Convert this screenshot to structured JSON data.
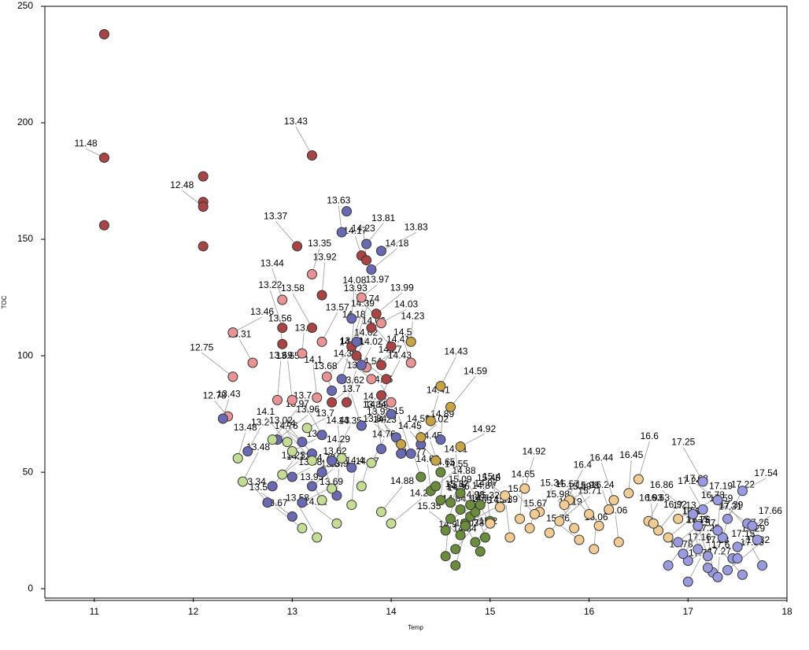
{
  "chart_data": {
    "type": "scatter",
    "x_label": "Temp",
    "y_label": "TOC",
    "xlim": [
      10.5,
      18
    ],
    "ylim": [
      -4,
      250
    ],
    "xticks": [
      11,
      12,
      13,
      14,
      15,
      16,
      17,
      18
    ],
    "yticks": [
      0,
      50,
      100,
      150,
      200,
      250
    ],
    "series": [
      {
        "color": "#a84444",
        "x": [
          11.1,
          11.1,
          11.1,
          12.1,
          12.1,
          12.1,
          12.1,
          13.05,
          13.2,
          13.7,
          13.75,
          13.3,
          13.6,
          13.65,
          13.9,
          13.85,
          13.8,
          13.95,
          14.0,
          13.2,
          12.9,
          12.9,
          13.6,
          13.55,
          13.9,
          13.7,
          13.4
        ],
        "values": [
          238,
          185,
          156,
          177,
          166,
          164,
          147,
          147,
          112,
          143,
          141,
          126,
          104,
          100,
          96,
          118,
          112,
          90,
          104,
          186,
          112,
          105,
          104,
          80,
          83,
          70,
          80
        ],
        "labels": [
          null,
          "11.48",
          null,
          null,
          null,
          "12.48",
          null,
          "13.37",
          "13.58",
          "14.17",
          "14.23",
          "13.92",
          "14.39",
          "14.02",
          "14.41",
          "13.99",
          "14.03",
          "14.54",
          "14.06",
          "13.43",
          "13.22",
          "13.56",
          "14.18",
          "13.7",
          "14.43",
          "13.84",
          "13.62"
        ]
      },
      {
        "color": "#e89494",
        "x": [
          12.4,
          12.4,
          12.35,
          12.6,
          12.9,
          13.0,
          13.1,
          13.2,
          13.3,
          13.35,
          13.7,
          13.75,
          13.8,
          13.9,
          14.0,
          14.2,
          13.25,
          12.85
        ],
        "values": [
          110,
          91,
          74,
          97,
          124,
          81,
          101,
          135,
          106,
          91,
          125,
          95,
          90,
          114,
          80,
          97,
          82,
          81
        ],
        "labels": [
          "13.46",
          "12.75",
          "12.78",
          "13.31",
          "13.44",
          "13.65",
          "13.8",
          "13.35",
          "13.57",
          "13.81",
          "13.97",
          "14.27",
          "14.36",
          "13.93",
          "14.45",
          "14.5",
          "14.1",
          "13.69"
        ]
      },
      {
        "color": "#6a6ab4",
        "x": [
          12.3,
          12.55,
          12.8,
          12.85,
          13.0,
          13.1,
          13.2,
          13.3,
          13.4,
          13.5,
          13.55,
          13.6,
          13.65,
          13.7,
          13.75,
          13.8,
          13.9,
          14.0,
          14.05,
          14.1,
          14.2,
          14.3,
          13.45,
          13.5,
          13.4,
          13.3,
          13.2,
          13.1,
          13.0,
          12.75,
          13.6,
          13.7,
          13.9,
          14.5
        ],
        "values": [
          73,
          59,
          44,
          64,
          48,
          63,
          58,
          66,
          85,
          153,
          162,
          116,
          106,
          96,
          148,
          137,
          145,
          75,
          65,
          58,
          58,
          62,
          40,
          90,
          55,
          50,
          44,
          37,
          31,
          37,
          52,
          70,
          60,
          64
        ],
        "labels": [
          "13.43",
          "13.2",
          "13.23",
          "13.96",
          "13.48",
          "13.02",
          "14",
          "13.7",
          "13.68",
          "13.63",
          null,
          "14.08",
          "13.74",
          "14.02",
          "13.81",
          "14.18",
          "13.83",
          "14.02",
          "13.92",
          "14.23",
          "15",
          "14.59",
          "13.9",
          "14.38",
          "14.35",
          "13.62",
          "13.67",
          "13.69",
          "13.58",
          "13.34",
          "14.29",
          "13.7",
          "14.59",
          "14.89"
        ]
      },
      {
        "color": "#c4dc94",
        "x": [
          12.45,
          12.5,
          12.8,
          12.9,
          13.0,
          13.1,
          13.2,
          13.3,
          13.4,
          13.5,
          13.6,
          13.7,
          13.8,
          13.9,
          14.0,
          13.15,
          13.45,
          12.95,
          13.25
        ],
        "values": [
          56,
          46,
          64,
          49,
          59,
          26,
          55,
          38,
          43,
          56,
          36,
          44,
          54,
          33,
          28,
          69,
          28,
          63,
          22
        ],
        "labels": [
          "13.48",
          "13.48",
          "13.97",
          "14.12",
          "13.7",
          "13.67",
          "14.76",
          "13.95",
          "14.72",
          "14.43",
          "14.4",
          "14.67",
          "14.76",
          "14.88",
          "14.29",
          "13.7",
          "14.12",
          "14.1",
          "13.58"
        ]
      },
      {
        "color": "#6a8c3c",
        "x": [
          14.3,
          14.4,
          14.5,
          14.55,
          14.6,
          14.65,
          14.7,
          14.75,
          14.8,
          14.85,
          14.9,
          14.95,
          15.0,
          14.55,
          14.65,
          14.75,
          14.85,
          14.45,
          14.6,
          14.7,
          14.8,
          14.9,
          14.5,
          14.7
        ],
        "values": [
          48,
          42,
          38,
          25,
          37,
          17,
          34,
          28,
          31,
          33,
          36,
          22,
          29,
          14,
          10,
          27,
          20,
          44,
          30,
          23,
          36,
          16,
          50,
          41
        ],
        "labels": [
          "14.77",
          "14.69",
          "14.65",
          "14.3",
          "15.09",
          "14.78",
          "14.87",
          "14.91",
          "14.84",
          "14.96",
          "14.88",
          "14.98",
          "15.32",
          "14.9",
          "14.84",
          "14.87",
          "15.2",
          "14.55",
          "14.7",
          "15.35",
          "15.37",
          "15.03",
          "14.45",
          "14.61"
        ]
      },
      {
        "color": "#c8a448",
        "x": [
          14.2,
          14.4,
          14.5,
          14.6,
          14.3,
          14.7,
          14.1,
          14.45
        ],
        "values": [
          106,
          72,
          87,
          78,
          65,
          61,
          62,
          55
        ],
        "labels": [
          "14.23",
          "14.41",
          "14.43",
          "14.59",
          "14.02",
          "14.92",
          "13.84",
          "14.45"
        ]
      },
      {
        "color": "#f0cc94",
        "x": [
          15.0,
          15.1,
          15.2,
          15.3,
          15.4,
          15.5,
          15.6,
          15.7,
          15.8,
          15.9,
          16.0,
          16.1,
          16.2,
          16.3,
          16.4,
          16.5,
          16.6,
          16.7,
          16.8,
          16.9,
          15.15,
          15.45,
          15.85,
          16.25,
          16.65,
          16.05,
          15.35,
          15.75
        ],
        "values": [
          28,
          35,
          22,
          30,
          26,
          33,
          24,
          29,
          38,
          21,
          32,
          27,
          34,
          20,
          41,
          47,
          29,
          25,
          22,
          30,
          40,
          32,
          26,
          38,
          28,
          17,
          43,
          36
        ],
        "labels": [
          "14.65",
          "15.4",
          "15.39",
          "14.65",
          "15.67",
          "15.34",
          "15.19",
          "15.71",
          "15.98",
          "15.76",
          "15.57",
          "15.89",
          "16.24",
          "16.06",
          "16.45",
          "16.6",
          "16.63",
          "16.92",
          "16.86",
          "16.78",
          "15.48",
          "15.5",
          "15.98",
          "16.44",
          "16.93",
          "16.06",
          "14.92",
          "16.4"
        ]
      },
      {
        "color": "#9a9ae0",
        "x": [
          16.8,
          16.9,
          17.0,
          17.05,
          17.1,
          17.15,
          17.2,
          17.25,
          17.3,
          17.35,
          17.4,
          17.45,
          17.5,
          17.55,
          17.6,
          17.7,
          17.75,
          17.2,
          17.1,
          17.3,
          17.5,
          17.0,
          16.95,
          17.4,
          17.65,
          17.3,
          17.55,
          17.15
        ],
        "values": [
          10,
          20,
          12,
          32,
          27,
          34,
          14,
          7,
          5,
          22,
          30,
          13,
          18,
          42,
          28,
          21,
          10,
          9,
          17,
          25,
          13,
          3,
          15,
          8,
          27,
          38,
          6,
          46
        ],
        "labels": [
          "16.78",
          "16.76",
          "17.23",
          "16.86",
          "17.13",
          "17.24",
          "17.15",
          "17.25",
          "17.27",
          "17.31",
          "17.22",
          "17.26",
          "17.29",
          "17.54",
          "17.59",
          "17.39",
          "17.36",
          "17.16",
          "17.13",
          "17.19",
          "17.15",
          "17.75",
          "17.57",
          "17.32",
          "17.66",
          "17.08",
          "17.6",
          "17.25"
        ]
      }
    ]
  }
}
